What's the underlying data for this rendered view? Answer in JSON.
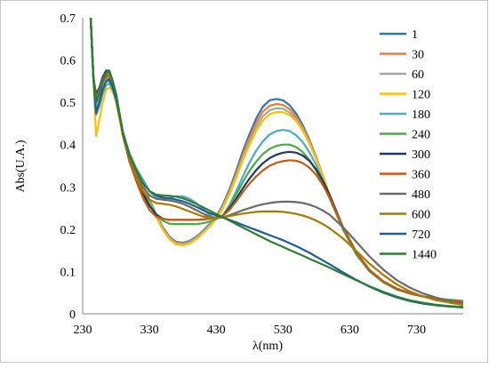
{
  "chart_data": {
    "type": "line",
    "xlabel": "λ(nm)",
    "ylabel": "Abs(U.A.)",
    "xlim": [
      230,
      800
    ],
    "ylim": [
      0,
      0.7
    ],
    "xticks": [
      230,
      330,
      430,
      530,
      630,
      730
    ],
    "yticks": [
      0,
      0.1,
      0.2,
      0.3,
      0.4,
      0.5,
      0.6,
      0.7
    ],
    "grid": false,
    "legend_position": "right",
    "x": [
      242,
      246,
      250,
      255,
      260,
      265,
      270,
      275,
      280,
      290,
      300,
      310,
      320,
      330,
      340,
      350,
      360,
      370,
      380,
      390,
      400,
      410,
      420,
      430,
      440,
      450,
      460,
      470,
      480,
      490,
      500,
      510,
      520,
      530,
      540,
      550,
      560,
      570,
      580,
      590,
      600,
      620,
      640,
      660,
      680,
      700,
      720,
      740,
      760,
      780,
      800
    ],
    "series": [
      {
        "name": "1",
        "color": "#2e75b6",
        "values": [
          0.7,
          0.56,
          0.495,
          0.51,
          0.54,
          0.56,
          0.565,
          0.545,
          0.515,
          0.43,
          0.375,
          0.34,
          0.305,
          0.27,
          0.235,
          0.205,
          0.182,
          0.17,
          0.168,
          0.172,
          0.182,
          0.196,
          0.212,
          0.23,
          0.258,
          0.295,
          0.338,
          0.385,
          0.425,
          0.462,
          0.49,
          0.505,
          0.508,
          0.505,
          0.493,
          0.473,
          0.445,
          0.41,
          0.37,
          0.325,
          0.28,
          0.2,
          0.14,
          0.1,
          0.075,
          0.058,
          0.048,
          0.041,
          0.036,
          0.033,
          0.03
        ]
      },
      {
        "name": "30",
        "color": "#ed7d31",
        "values": [
          0.7,
          0.56,
          0.49,
          0.505,
          0.535,
          0.555,
          0.56,
          0.54,
          0.51,
          0.428,
          0.372,
          0.338,
          0.303,
          0.268,
          0.233,
          0.203,
          0.18,
          0.168,
          0.166,
          0.17,
          0.18,
          0.194,
          0.21,
          0.228,
          0.255,
          0.29,
          0.332,
          0.377,
          0.417,
          0.452,
          0.478,
          0.492,
          0.496,
          0.494,
          0.484,
          0.466,
          0.44,
          0.407,
          0.369,
          0.325,
          0.28,
          0.2,
          0.14,
          0.1,
          0.075,
          0.058,
          0.048,
          0.041,
          0.036,
          0.033,
          0.03
        ]
      },
      {
        "name": "60",
        "color": "#a5a5a5",
        "values": [
          0.7,
          0.56,
          0.49,
          0.505,
          0.53,
          0.55,
          0.555,
          0.535,
          0.508,
          0.425,
          0.37,
          0.336,
          0.301,
          0.266,
          0.232,
          0.202,
          0.179,
          0.167,
          0.165,
          0.169,
          0.179,
          0.193,
          0.209,
          0.227,
          0.253,
          0.287,
          0.327,
          0.37,
          0.408,
          0.442,
          0.467,
          0.481,
          0.486,
          0.485,
          0.476,
          0.46,
          0.436,
          0.404,
          0.367,
          0.324,
          0.28,
          0.2,
          0.14,
          0.1,
          0.075,
          0.058,
          0.048,
          0.041,
          0.036,
          0.033,
          0.03
        ]
      },
      {
        "name": "120",
        "color": "#ffc000",
        "values": [
          0.7,
          0.56,
          0.42,
          0.46,
          0.5,
          0.53,
          0.535,
          0.525,
          0.5,
          0.42,
          0.365,
          0.332,
          0.298,
          0.263,
          0.229,
          0.199,
          0.176,
          0.164,
          0.162,
          0.166,
          0.176,
          0.19,
          0.206,
          0.224,
          0.25,
          0.283,
          0.322,
          0.364,
          0.4,
          0.433,
          0.457,
          0.472,
          0.477,
          0.477,
          0.47,
          0.455,
          0.432,
          0.401,
          0.365,
          0.323,
          0.28,
          0.2,
          0.14,
          0.1,
          0.075,
          0.058,
          0.048,
          0.041,
          0.036,
          0.033,
          0.03
        ]
      },
      {
        "name": "180",
        "color": "#4bacc6",
        "values": [
          0.7,
          0.56,
          0.47,
          0.49,
          0.52,
          0.54,
          0.545,
          0.53,
          0.505,
          0.43,
          0.38,
          0.345,
          0.318,
          0.29,
          0.275,
          0.272,
          0.274,
          0.278,
          0.278,
          0.272,
          0.262,
          0.248,
          0.234,
          0.225,
          0.232,
          0.258,
          0.29,
          0.325,
          0.358,
          0.386,
          0.408,
          0.424,
          0.432,
          0.435,
          0.432,
          0.422,
          0.405,
          0.381,
          0.351,
          0.314,
          0.275,
          0.2,
          0.14,
          0.1,
          0.075,
          0.058,
          0.048,
          0.041,
          0.036,
          0.033,
          0.03
        ]
      },
      {
        "name": "240",
        "color": "#4eaa47",
        "values": [
          0.7,
          0.56,
          0.48,
          0.5,
          0.53,
          0.55,
          0.55,
          0.535,
          0.51,
          0.43,
          0.37,
          0.33,
          0.29,
          0.26,
          0.235,
          0.22,
          0.213,
          0.212,
          0.212,
          0.212,
          0.212,
          0.214,
          0.218,
          0.224,
          0.232,
          0.254,
          0.282,
          0.312,
          0.338,
          0.36,
          0.378,
          0.39,
          0.397,
          0.4,
          0.4,
          0.394,
          0.382,
          0.363,
          0.338,
          0.307,
          0.272,
          0.2,
          0.14,
          0.1,
          0.075,
          0.058,
          0.048,
          0.041,
          0.036,
          0.033,
          0.03
        ]
      },
      {
        "name": "300",
        "color": "#1f3864",
        "values": [
          0.7,
          0.56,
          0.52,
          0.535,
          0.56,
          0.575,
          0.575,
          0.55,
          0.52,
          0.425,
          0.36,
          0.32,
          0.285,
          0.255,
          0.235,
          0.225,
          0.222,
          0.222,
          0.222,
          0.222,
          0.222,
          0.223,
          0.225,
          0.228,
          0.232,
          0.25,
          0.272,
          0.297,
          0.32,
          0.34,
          0.356,
          0.368,
          0.376,
          0.381,
          0.383,
          0.381,
          0.374,
          0.361,
          0.341,
          0.314,
          0.281,
          0.205,
          0.145,
          0.103,
          0.077,
          0.06,
          0.049,
          0.041,
          0.035,
          0.031,
          0.028
        ]
      },
      {
        "name": "360",
        "color": "#c55a11",
        "values": [
          0.7,
          0.56,
          0.51,
          0.53,
          0.555,
          0.57,
          0.57,
          0.545,
          0.515,
          0.43,
          0.36,
          0.315,
          0.275,
          0.245,
          0.23,
          0.225,
          0.222,
          0.222,
          0.222,
          0.222,
          0.222,
          0.223,
          0.225,
          0.228,
          0.232,
          0.246,
          0.266,
          0.288,
          0.308,
          0.325,
          0.339,
          0.35,
          0.357,
          0.361,
          0.363,
          0.362,
          0.356,
          0.345,
          0.328,
          0.304,
          0.275,
          0.205,
          0.145,
          0.103,
          0.077,
          0.06,
          0.049,
          0.041,
          0.035,
          0.031,
          0.028
        ]
      },
      {
        "name": "480",
        "color": "#6b6b6b",
        "values": [
          0.7,
          0.56,
          0.51,
          0.525,
          0.555,
          0.57,
          0.57,
          0.55,
          0.52,
          0.43,
          0.37,
          0.33,
          0.3,
          0.28,
          0.272,
          0.27,
          0.268,
          0.265,
          0.26,
          0.253,
          0.245,
          0.237,
          0.23,
          0.226,
          0.228,
          0.233,
          0.239,
          0.245,
          0.25,
          0.255,
          0.259,
          0.262,
          0.264,
          0.265,
          0.265,
          0.264,
          0.262,
          0.258,
          0.252,
          0.244,
          0.234,
          0.205,
          0.17,
          0.135,
          0.105,
          0.08,
          0.062,
          0.048,
          0.038,
          0.03,
          0.024
        ]
      },
      {
        "name": "600",
        "color": "#a67c00",
        "values": [
          0.7,
          0.56,
          0.5,
          0.52,
          0.55,
          0.565,
          0.565,
          0.545,
          0.515,
          0.43,
          0.37,
          0.325,
          0.29,
          0.27,
          0.262,
          0.26,
          0.258,
          0.254,
          0.248,
          0.242,
          0.236,
          0.23,
          0.228,
          0.227,
          0.228,
          0.231,
          0.234,
          0.237,
          0.239,
          0.241,
          0.242,
          0.242,
          0.242,
          0.241,
          0.239,
          0.236,
          0.232,
          0.227,
          0.22,
          0.212,
          0.202,
          0.178,
          0.148,
          0.118,
          0.092,
          0.07,
          0.053,
          0.041,
          0.032,
          0.026,
          0.021
        ]
      },
      {
        "name": "720",
        "color": "#1f5c99",
        "values": [
          0.7,
          0.56,
          0.475,
          0.5,
          0.53,
          0.55,
          0.555,
          0.535,
          0.51,
          0.43,
          0.375,
          0.34,
          0.31,
          0.29,
          0.28,
          0.275,
          0.273,
          0.27,
          0.266,
          0.26,
          0.253,
          0.245,
          0.238,
          0.233,
          0.228,
          0.222,
          0.216,
          0.21,
          0.204,
          0.198,
          0.192,
          0.186,
          0.18,
          0.174,
          0.167,
          0.16,
          0.152,
          0.144,
          0.135,
          0.126,
          0.117,
          0.098,
          0.08,
          0.064,
          0.05,
          0.039,
          0.03,
          0.024,
          0.02,
          0.017,
          0.015
        ]
      },
      {
        "name": "1440",
        "color": "#2e7d32",
        "values": [
          0.7,
          0.56,
          0.5,
          0.52,
          0.55,
          0.57,
          0.575,
          0.55,
          0.52,
          0.43,
          0.375,
          0.34,
          0.31,
          0.29,
          0.282,
          0.28,
          0.279,
          0.277,
          0.273,
          0.267,
          0.26,
          0.252,
          0.244,
          0.236,
          0.228,
          0.22,
          0.212,
          0.204,
          0.196,
          0.188,
          0.18,
          0.172,
          0.165,
          0.158,
          0.151,
          0.144,
          0.137,
          0.13,
          0.123,
          0.116,
          0.109,
          0.094,
          0.079,
          0.065,
          0.052,
          0.041,
          0.032,
          0.026,
          0.021,
          0.018,
          0.016
        ]
      }
    ]
  }
}
